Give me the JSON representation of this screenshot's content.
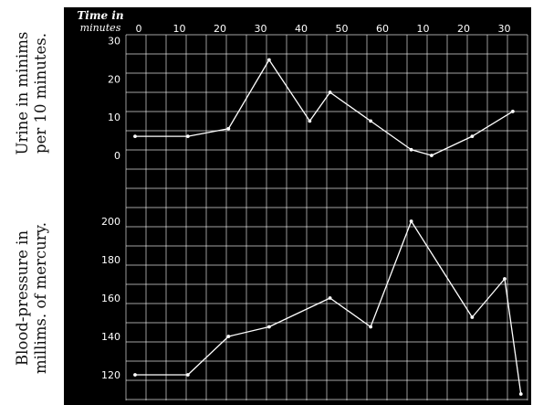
{
  "side_labels": {
    "top": [
      "Urine in minims",
      "per 10 minutes."
    ],
    "bottom": [
      "Blood-pressure in",
      "millims. of mercury."
    ]
  },
  "axis_title": [
    "Time in",
    "minutes"
  ],
  "colors": {
    "panel": "#000000",
    "grid": "#ffffff",
    "line": "#ffffff",
    "text": "#ffffff"
  },
  "chart_data": [
    {
      "type": "line",
      "title": "",
      "xlabel": "Time in minutes",
      "ylabel": "Urine in minims per 10 minutes.",
      "x_tick_labels": [
        "0",
        "10",
        "20",
        "30",
        "40",
        "50",
        "60",
        "10",
        "20",
        "30"
      ],
      "xlim": [
        0,
        95
      ],
      "ylim": [
        0,
        30
      ],
      "y_ticks": [
        0,
        10,
        20,
        30
      ],
      "grid": true,
      "series": [
        {
          "x": [
            0,
            13,
            23,
            33,
            43,
            48,
            58,
            68,
            73,
            83,
            93
          ],
          "y": [
            5,
            5,
            7,
            25,
            9,
            16.5,
            9,
            1.5,
            0,
            5,
            11.5
          ]
        }
      ]
    },
    {
      "type": "line",
      "title": "",
      "xlabel": "Time in minutes",
      "ylabel": "Blood-pressure in millims. of mercury.",
      "xlim": [
        0,
        95
      ],
      "ylim": [
        110,
        210
      ],
      "y_ticks": [
        120,
        140,
        160,
        180,
        200
      ],
      "grid": true,
      "series": [
        {
          "x": [
            0,
            13,
            23,
            33,
            48,
            58,
            68,
            83,
            91,
            95
          ],
          "y": [
            120,
            120,
            140,
            145,
            160,
            145,
            200,
            150,
            170,
            110
          ]
        }
      ]
    }
  ]
}
